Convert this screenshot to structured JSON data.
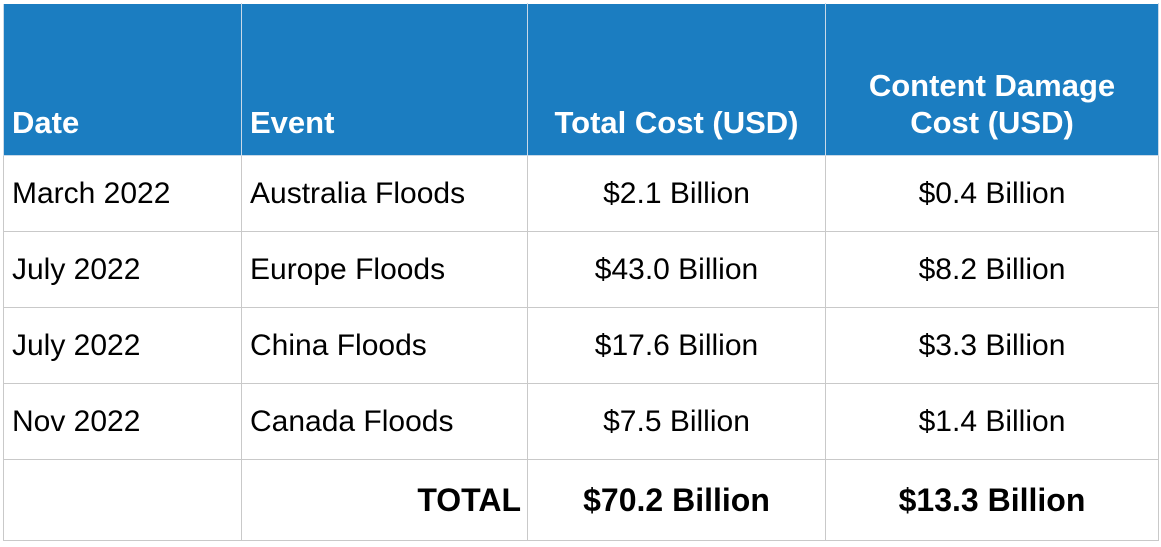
{
  "table": {
    "headers": {
      "date": "Date",
      "event": "Event",
      "total_cost": "Total Cost (USD)",
      "content_damage_cost": "Content Damage Cost (USD)"
    },
    "rows": [
      {
        "date": "March 2022",
        "event": "Australia Floods",
        "total_cost": "$2.1 Billion",
        "content_damage_cost": "$0.4 Billion"
      },
      {
        "date": "July 2022",
        "event": "Europe Floods",
        "total_cost": "$43.0 Billion",
        "content_damage_cost": "$8.2 Billion"
      },
      {
        "date": "July 2022",
        "event": "China Floods",
        "total_cost": "$17.6 Billion",
        "content_damage_cost": "$3.3 Billion"
      },
      {
        "date": "Nov 2022",
        "event": "Canada Floods",
        "total_cost": "$7.5 Billion",
        "content_damage_cost": "$1.4 Billion"
      }
    ],
    "total": {
      "date": "",
      "label": "TOTAL",
      "total_cost": "$70.2 Billion",
      "content_damage_cost": "$13.3 Billion"
    },
    "colors": {
      "header_background": "#1b7dc1",
      "header_text": "#ffffff",
      "grid_line": "#c9c9c9"
    }
  }
}
